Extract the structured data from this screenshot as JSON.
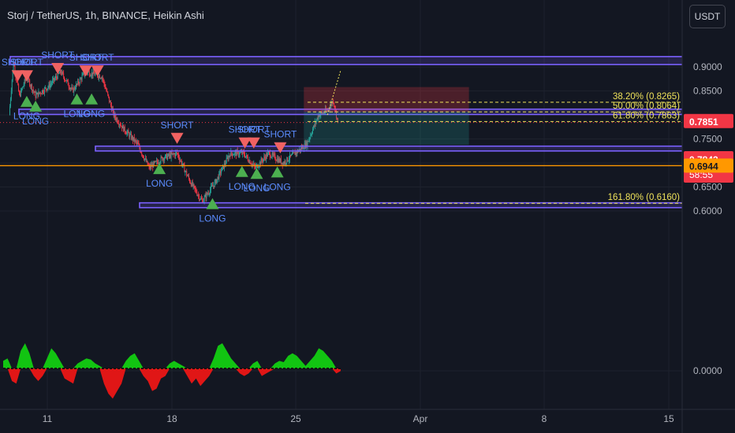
{
  "header": {
    "title": "Storj / TetherUS, 1h, BINANCE, Heikin Ashi"
  },
  "currency_button": "USDT",
  "colors": {
    "background": "#131722",
    "bull": "#26a69a",
    "bear": "#ef5350",
    "bear_candle": "#f23645",
    "zone": "#7b61ff",
    "fib": "#f0e35a",
    "long_signal": "#4caf50",
    "short_signal": "#f06262",
    "signal_text": "#5b8cff",
    "orange_line": "#ff9800"
  },
  "price_tags": {
    "last": "0.7851",
    "prev": "0.7843",
    "countdown": "58:55",
    "level": "0.6944"
  },
  "chart_data": {
    "type": "candlestick",
    "title": "Storj / TetherUS, 1h, BINANCE, Heikin Ashi",
    "y_ticks": [
      "0.9000",
      "0.8500",
      "0.7500",
      "0.6500",
      "0.6000",
      "0.0000"
    ],
    "x_ticks": [
      "11",
      "18",
      "25",
      "Apr",
      "8",
      "15"
    ],
    "price_path": [
      {
        "x": "Mar 9 00:00",
        "y": 0.8
      },
      {
        "x": "Mar 9 06:00",
        "y": 0.91
      },
      {
        "x": "Mar 9 14:00",
        "y": 0.84
      },
      {
        "x": "Mar 10 00:00",
        "y": 0.88
      },
      {
        "x": "Mar 10 12:00",
        "y": 0.84
      },
      {
        "x": "Mar 11 06:00",
        "y": 0.86
      },
      {
        "x": "Mar 11 22:00",
        "y": 0.89
      },
      {
        "x": "Mar 12 14:00",
        "y": 0.85
      },
      {
        "x": "Mar 13 08:00",
        "y": 0.89
      },
      {
        "x": "Mar 14 06:00",
        "y": 0.88
      },
      {
        "x": "Mar 14 22:00",
        "y": 0.8
      },
      {
        "x": "Mar 15 12:00",
        "y": 0.77
      },
      {
        "x": "Mar 16 06:00",
        "y": 0.74
      },
      {
        "x": "Mar 16 22:00",
        "y": 0.69
      },
      {
        "x": "Mar 17 16:00",
        "y": 0.71
      },
      {
        "x": "Mar 18 12:00",
        "y": 0.72
      },
      {
        "x": "Mar 19 06:00",
        "y": 0.66
      },
      {
        "x": "Mar 19 22:00",
        "y": 0.62
      },
      {
        "x": "Mar 20 16:00",
        "y": 0.66
      },
      {
        "x": "Mar 21 12:00",
        "y": 0.72
      },
      {
        "x": "Mar 22 06:00",
        "y": 0.72
      },
      {
        "x": "Mar 22 22:00",
        "y": 0.69
      },
      {
        "x": "Mar 23 16:00",
        "y": 0.72
      },
      {
        "x": "Mar 24 12:00",
        "y": 0.7
      },
      {
        "x": "Mar 25 04:00",
        "y": 0.72
      },
      {
        "x": "Mar 25 20:00",
        "y": 0.74
      },
      {
        "x": "Mar 26 12:00",
        "y": 0.8
      },
      {
        "x": "Mar 27 00:00",
        "y": 0.81
      },
      {
        "x": "Mar 27 08:00",
        "y": 0.83
      },
      {
        "x": "Mar 27 14:00",
        "y": 0.785
      }
    ],
    "zones": [
      {
        "y_low": 0.905,
        "y_high": 0.9215
      },
      {
        "y_low": 0.801,
        "y_high": 0.812
      },
      {
        "y_low": 0.725,
        "y_high": 0.735
      },
      {
        "y_low": 0.607,
        "y_high": 0.617
      }
    ],
    "fib_levels": [
      {
        "label": "38.20% (0.8265)",
        "value": 0.8265
      },
      {
        "label": "50.00% (0.8064)",
        "value": 0.8064
      },
      {
        "label": "61.80% (0.7863)",
        "value": 0.7863
      },
      {
        "label": "161.80% (0.6160)",
        "value": 0.616
      }
    ],
    "position": {
      "entry": 0.8064,
      "stop": 0.858,
      "target": 0.738,
      "start": "Mar 25 16:00",
      "end": "Apr 4 00:00"
    },
    "signals": [
      {
        "label": "SHORT",
        "type": "short",
        "x": "Mar 9 12:00",
        "y": 0.88
      },
      {
        "label": "SHORT",
        "type": "short",
        "x": "Mar 10 00:00",
        "y": 0.88
      },
      {
        "label": "SHORT",
        "type": "short",
        "x": "Mar 11 18:00",
        "y": 0.895
      },
      {
        "label": "SHORT",
        "type": "short",
        "x": "Mar 13 08:00",
        "y": 0.89
      },
      {
        "label": "SHORT",
        "type": "short",
        "x": "Mar 14 00:00",
        "y": 0.89
      },
      {
        "label": "LONG",
        "type": "long",
        "x": "Mar 10 00:00",
        "y": 0.83
      },
      {
        "label": "LONG",
        "type": "long",
        "x": "Mar 10 12:00",
        "y": 0.82
      },
      {
        "label": "LONG",
        "type": "long",
        "x": "Mar 12 20:00",
        "y": 0.835
      },
      {
        "label": "LONG",
        "type": "long",
        "x": "Mar 13 16:00",
        "y": 0.835
      },
      {
        "label": "SHORT",
        "type": "short",
        "x": "Mar 18 12:00",
        "y": 0.7495
      },
      {
        "label": "LONG",
        "type": "long",
        "x": "Mar 17 12:00",
        "y": 0.69
      },
      {
        "label": "LONG",
        "type": "long",
        "x": "Mar 20 12:00",
        "y": 0.617
      },
      {
        "label": "SHORT",
        "type": "short",
        "x": "Mar 22 08:00",
        "y": 0.74
      },
      {
        "label": "SHORT",
        "type": "short",
        "x": "Mar 22 20:00",
        "y": 0.74
      },
      {
        "label": "SHORT",
        "type": "short",
        "x": "Mar 24 08:00",
        "y": 0.73
      },
      {
        "label": "LONG",
        "type": "long",
        "x": "Mar 22 04:00",
        "y": 0.684
      },
      {
        "label": "LONG",
        "type": "long",
        "x": "Mar 23 00:00",
        "y": 0.68
      },
      {
        "label": "LONG",
        "type": "long",
        "x": "Mar 24 04:00",
        "y": 0.683
      }
    ],
    "price_lines": [
      {
        "value": 0.7843,
        "style": "dotted"
      },
      {
        "value": 0.6944,
        "style": "solid"
      }
    ],
    "oscillator": {
      "zero_label": "0.0000",
      "values": [
        0.3,
        0.4,
        -0.5,
        -0.6,
        0.7,
        1.0,
        0.6,
        -0.3,
        -0.5,
        -0.3,
        0.4,
        0.8,
        0.6,
        0.3,
        -0.4,
        -0.5,
        -0.6,
        0.2,
        0.3,
        0.4,
        0.35,
        0.2,
        0.1,
        -0.6,
        -1.0,
        -1.2,
        -0.9,
        -0.6,
        0.3,
        0.5,
        0.6,
        0.3,
        -0.3,
        -0.5,
        -0.9,
        -0.8,
        -0.4,
        -0.3,
        0.2,
        0.3,
        0.2,
        0.1,
        -0.3,
        -0.6,
        -0.4,
        -0.7,
        -0.5,
        -0.3,
        0.4,
        0.9,
        1.0,
        0.7,
        0.4,
        0.2,
        -0.2,
        -0.3,
        -0.2,
        0.2,
        0.3,
        -0.3,
        -0.2,
        -0.1,
        0.2,
        0.3,
        0.25,
        0.5,
        0.6,
        0.5,
        0.3,
        0.1,
        0.3,
        0.5,
        0.8,
        0.7,
        0.5,
        0.3,
        -0.2,
        -0.1
      ]
    }
  }
}
